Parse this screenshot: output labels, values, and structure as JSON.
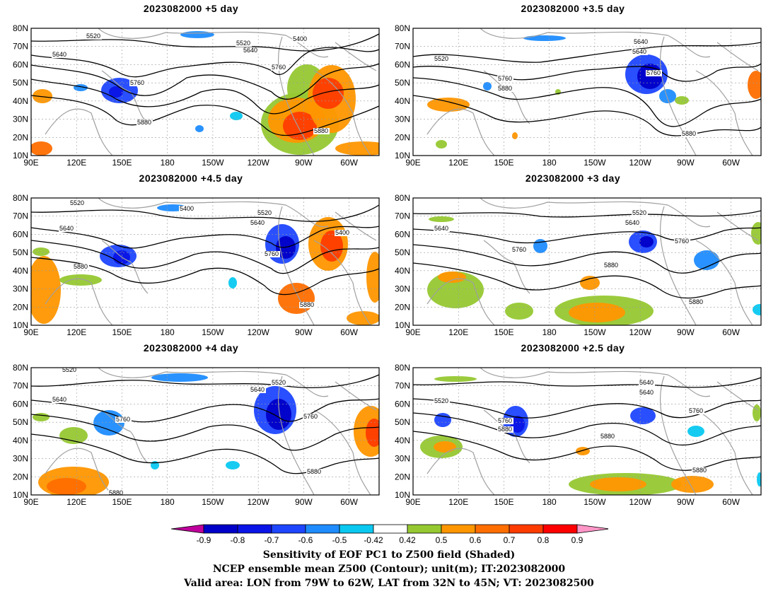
{
  "panels": [
    {
      "title": "2023082000 +5 day",
      "contours": [
        "5520",
        "5400",
        "5520",
        "5640",
        "5640",
        "5760",
        "5760",
        "5880",
        "5880"
      ]
    },
    {
      "title": "2023082000 +3.5 day",
      "contours": [
        "5520",
        "5640",
        "5640",
        "5760",
        "5760",
        "5880",
        "5880"
      ]
    },
    {
      "title": "2023082000 +4.5 day",
      "contours": [
        "5520",
        "5400",
        "5520",
        "5640",
        "5640",
        "5400",
        "5760",
        "5880",
        "5880"
      ]
    },
    {
      "title": "2023082000 +3 day",
      "contours": [
        "5520",
        "5640",
        "5640",
        "5760",
        "5760",
        "5880",
        "5880"
      ]
    },
    {
      "title": "2023082000 +4 day",
      "contours": [
        "5520",
        "5520",
        "5640",
        "5640",
        "5760",
        "5760",
        "5880",
        "5880"
      ]
    },
    {
      "title": "2023082000 +2.5 day",
      "contours": [
        "5520",
        "5640",
        "5640",
        "5760",
        "5760",
        "5880",
        "5880",
        "5880"
      ]
    }
  ],
  "axes": {
    "lat_labels": [
      "80N",
      "70N",
      "60N",
      "50N",
      "40N",
      "30N",
      "20N",
      "10N"
    ],
    "lon_labels": [
      "90E",
      "120E",
      "150E",
      "180",
      "150W",
      "120W",
      "90W",
      "60W"
    ]
  },
  "colorbar": {
    "labels": [
      "-0.9",
      "-0.8",
      "-0.7",
      "-0.6",
      "-0.5",
      "-0.42",
      "0.42",
      "0.5",
      "0.6",
      "0.7",
      "0.8",
      "0.9"
    ],
    "colors": [
      "#c0009c",
      "#0000c8",
      "#0a14e6",
      "#1e46ff",
      "#1e8cff",
      "#0ac8f0",
      "#ffffff",
      "#96c832",
      "#ff9600",
      "#ff6e00",
      "#ff3c00",
      "#ff0000",
      "#ff96c8"
    ]
  },
  "caption": {
    "line1": "Sensitivity of EOF PC1 to Z500 field (Shaded)",
    "line2": "NCEP ensemble mean Z500 (Contour); unit(m); IT:2023082000",
    "line3": "Valid area: LON from 79W to 62W, LAT from 32N to 45N; VT: 2023082500"
  }
}
